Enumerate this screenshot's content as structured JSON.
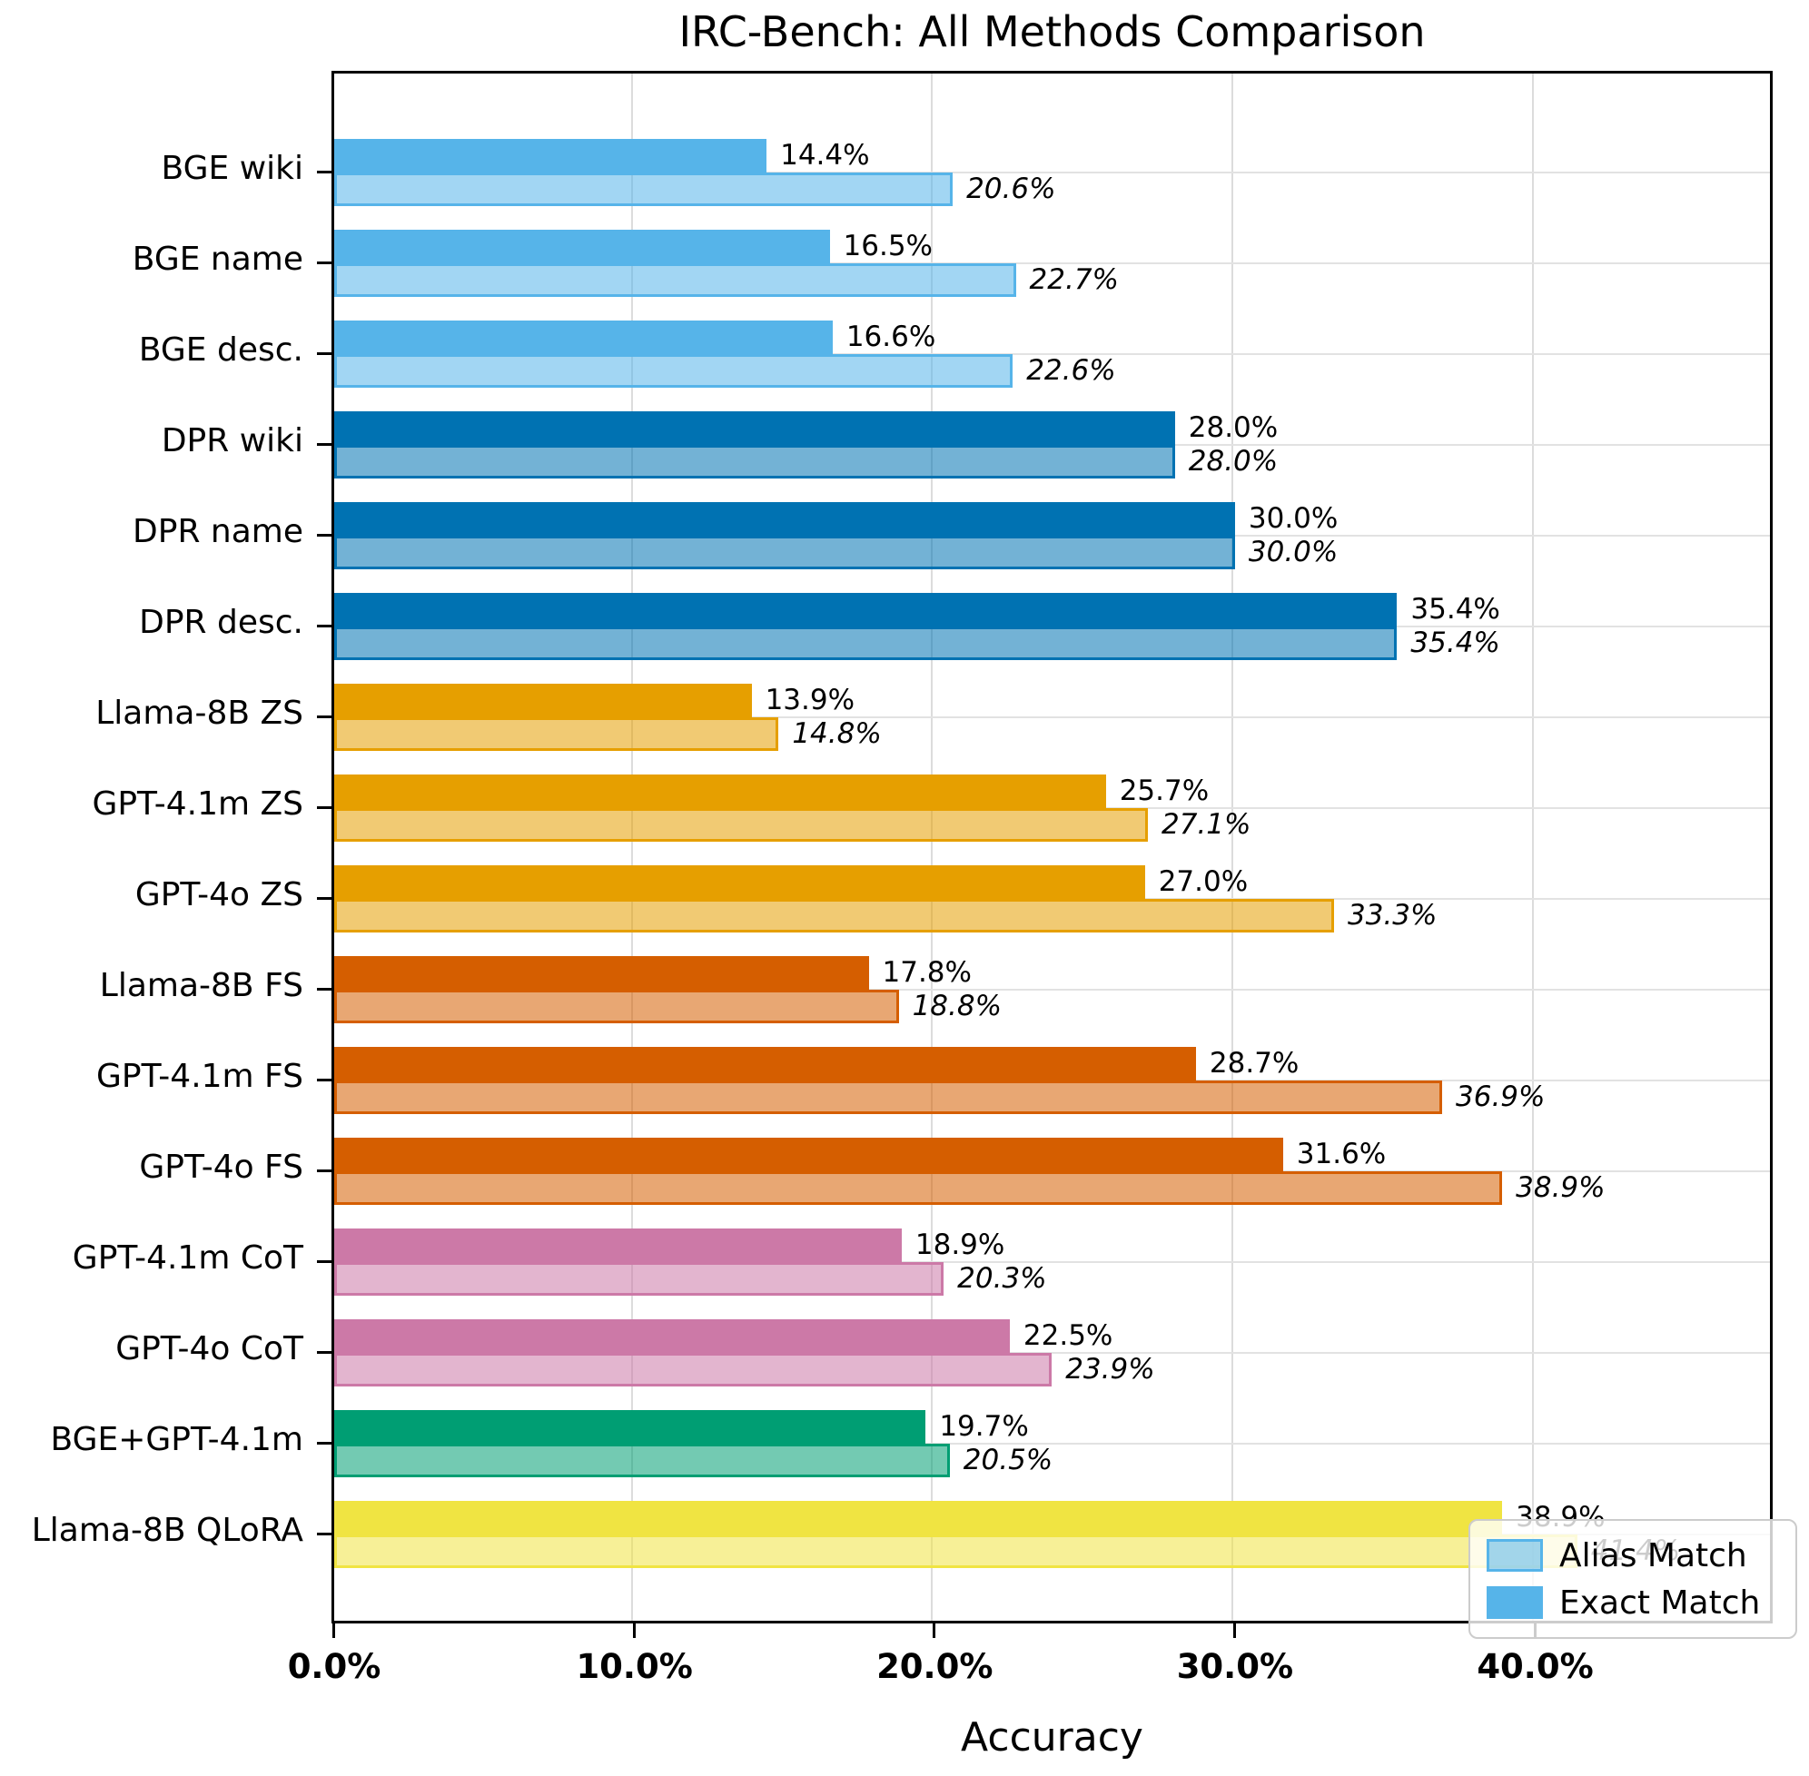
{
  "title": "IRC-Bench: All Methods Comparison",
  "xlabel": "Accuracy",
  "legend": {
    "alias_label": "Alias Match",
    "exact_label": "Exact Match",
    "swatch_color": "#56B4E9"
  },
  "chart_data": {
    "type": "bar",
    "orientation": "horizontal",
    "title": "IRC-Bench: All Methods Comparison",
    "xlabel": "Accuracy",
    "ylabel": "",
    "xlim": [
      0,
      48
    ],
    "grid": true,
    "legend_position": "lower right",
    "x_ticks": [
      {
        "value": 0,
        "label": "0.0%"
      },
      {
        "value": 10,
        "label": "10.0%"
      },
      {
        "value": 20,
        "label": "20.0%"
      },
      {
        "value": 30,
        "label": "30.0%"
      },
      {
        "value": 40,
        "label": "40.0%"
      }
    ],
    "categories": [
      "BGE wiki",
      "BGE name",
      "BGE desc.",
      "DPR wiki",
      "DPR name",
      "DPR desc.",
      "Llama-8B ZS",
      "GPT-4.1m ZS",
      "GPT-4o ZS",
      "Llama-8B FS",
      "GPT-4.1m FS",
      "GPT-4o FS",
      "GPT-4.1m CoT",
      "GPT-4o CoT",
      "BGE+GPT-4.1m",
      "Llama-8B QLoRA"
    ],
    "series": [
      {
        "name": "Exact Match",
        "values": [
          14.4,
          16.5,
          16.6,
          28.0,
          30.0,
          35.4,
          13.9,
          25.7,
          27.0,
          17.8,
          28.7,
          31.6,
          18.9,
          22.5,
          19.7,
          38.9
        ],
        "labels": [
          "14.4%",
          "16.5%",
          "16.6%",
          "28.0%",
          "30.0%",
          "35.4%",
          "13.9%",
          "25.7%",
          "27.0%",
          "17.8%",
          "28.7%",
          "31.6%",
          "18.9%",
          "22.5%",
          "19.7%",
          "38.9%"
        ]
      },
      {
        "name": "Alias Match",
        "values": [
          20.6,
          22.7,
          22.6,
          28.0,
          30.0,
          35.4,
          14.8,
          27.1,
          33.3,
          18.8,
          36.9,
          38.9,
          20.3,
          23.9,
          20.5,
          41.4
        ],
        "labels": [
          "20.6%",
          "22.7%",
          "22.6%",
          "28.0%",
          "30.0%",
          "35.4%",
          "14.8%",
          "27.1%",
          "33.3%",
          "18.8%",
          "36.9%",
          "38.9%",
          "20.3%",
          "23.9%",
          "20.5%",
          "41.4%"
        ]
      }
    ],
    "bar_colors": [
      "#56B4E9",
      "#56B4E9",
      "#56B4E9",
      "#0072B2",
      "#0072B2",
      "#0072B2",
      "#E69F00",
      "#E69F00",
      "#E69F00",
      "#D55E00",
      "#D55E00",
      "#D55E00",
      "#CC79A7",
      "#CC79A7",
      "#009E73",
      "#F0E442"
    ],
    "alias_fill_alpha": 0.55
  }
}
